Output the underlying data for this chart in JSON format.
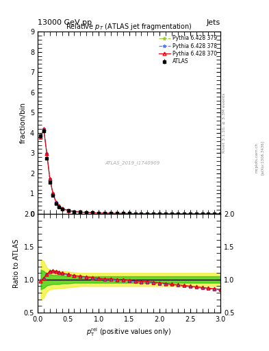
{
  "title_top": "13000 GeV pp",
  "title_right": "Jets",
  "main_title": "Relative $p_{T}$ (ATLAS jet fragmentation)",
  "ylabel_main": "fraction/bin",
  "ylabel_ratio": "Ratio to ATLAS",
  "right_label_main": "Rivet 3.1.10, ≥ 3.3M events",
  "right_label_arxiv": "[arXiv:1306.3436]",
  "right_label_mcplots": "mcplots.cern.ch",
  "watermark": "ATLAS_2019_I1740909",
  "xlim": [
    0,
    3
  ],
  "ylim_main": [
    0,
    9
  ],
  "ylim_ratio": [
    0.5,
    2.0
  ],
  "x_data": [
    0.05,
    0.1,
    0.15,
    0.2,
    0.25,
    0.3,
    0.35,
    0.4,
    0.5,
    0.6,
    0.7,
    0.8,
    0.9,
    1.0,
    1.1,
    1.2,
    1.3,
    1.4,
    1.5,
    1.6,
    1.7,
    1.8,
    1.9,
    2.0,
    2.1,
    2.2,
    2.3,
    2.4,
    2.5,
    2.6,
    2.7,
    2.8,
    2.9,
    3.0
  ],
  "atlas_y": [
    3.85,
    4.1,
    2.75,
    1.55,
    0.9,
    0.52,
    0.35,
    0.24,
    0.155,
    0.11,
    0.085,
    0.065,
    0.052,
    0.042,
    0.034,
    0.028,
    0.023,
    0.019,
    0.016,
    0.014,
    0.012,
    0.01,
    0.009,
    0.008,
    0.007,
    0.006,
    0.006,
    0.005,
    0.005,
    0.004,
    0.004,
    0.004,
    0.003,
    0.003
  ],
  "atlas_yerr": [
    0.12,
    0.1,
    0.07,
    0.05,
    0.03,
    0.02,
    0.014,
    0.01,
    0.006,
    0.004,
    0.003,
    0.0025,
    0.002,
    0.0015,
    0.0013,
    0.001,
    0.001,
    0.001,
    0.001,
    0.0008,
    0.0007,
    0.0006,
    0.0006,
    0.0005,
    0.0005,
    0.0004,
    0.0004,
    0.0004,
    0.0004,
    0.0003,
    0.0003,
    0.0003,
    0.0003,
    0.0003
  ],
  "py370_ratio": [
    0.98,
    1.02,
    1.08,
    1.12,
    1.13,
    1.12,
    1.11,
    1.1,
    1.08,
    1.06,
    1.05,
    1.04,
    1.03,
    1.02,
    1.01,
    1.01,
    1.0,
    1.0,
    0.99,
    0.98,
    0.97,
    0.97,
    0.96,
    0.95,
    0.94,
    0.93,
    0.92,
    0.91,
    0.9,
    0.89,
    0.88,
    0.87,
    0.86,
    0.85
  ],
  "py378_ratio": [
    0.99,
    1.02,
    1.08,
    1.12,
    1.13,
    1.12,
    1.1,
    1.09,
    1.07,
    1.06,
    1.05,
    1.03,
    1.02,
    1.01,
    1.0,
    1.0,
    0.99,
    0.98,
    0.98,
    0.97,
    0.96,
    0.96,
    0.95,
    0.94,
    0.93,
    0.92,
    0.91,
    0.9,
    0.89,
    0.88,
    0.87,
    0.86,
    0.85,
    0.84
  ],
  "py379_ratio": [
    0.99,
    1.02,
    1.08,
    1.12,
    1.13,
    1.12,
    1.1,
    1.09,
    1.07,
    1.06,
    1.05,
    1.03,
    1.02,
    1.01,
    1.0,
    1.0,
    0.99,
    0.98,
    0.98,
    0.97,
    0.96,
    0.96,
    0.95,
    0.94,
    0.93,
    0.92,
    0.91,
    0.9,
    0.89,
    0.88,
    0.87,
    0.86,
    0.85,
    0.84
  ],
  "color_py370": "#e8000b",
  "color_py378": "#4d79ff",
  "color_py379": "#9acd32",
  "color_atlas": "#000000",
  "color_band_green": "#00bb00",
  "color_band_yellow": "#eeee00",
  "band_green_alpha": 0.55,
  "band_yellow_alpha": 0.6,
  "yellow_hi_vals": [
    1.3,
    1.28,
    1.18,
    1.15,
    1.14,
    1.14,
    1.13,
    1.13,
    1.12,
    1.11,
    1.1,
    1.1,
    1.1,
    1.1,
    1.1,
    1.1,
    1.1,
    1.1,
    1.1,
    1.1,
    1.1,
    1.1,
    1.1,
    1.1,
    1.1,
    1.1,
    1.1,
    1.1,
    1.1,
    1.1,
    1.1,
    1.1,
    1.1,
    1.1
  ],
  "yellow_lo_vals": [
    0.7,
    0.72,
    0.82,
    0.85,
    0.86,
    0.86,
    0.87,
    0.87,
    0.88,
    0.89,
    0.9,
    0.9,
    0.9,
    0.9,
    0.9,
    0.9,
    0.9,
    0.9,
    0.9,
    0.9,
    0.9,
    0.9,
    0.9,
    0.9,
    0.9,
    0.9,
    0.9,
    0.9,
    0.9,
    0.9,
    0.9,
    0.9,
    0.9,
    0.9
  ],
  "green_hi_vals": [
    1.15,
    1.13,
    1.09,
    1.08,
    1.07,
    1.07,
    1.07,
    1.06,
    1.06,
    1.05,
    1.05,
    1.05,
    1.05,
    1.05,
    1.05,
    1.05,
    1.05,
    1.05,
    1.05,
    1.05,
    1.05,
    1.05,
    1.05,
    1.05,
    1.05,
    1.05,
    1.05,
    1.05,
    1.05,
    1.05,
    1.05,
    1.05,
    1.05,
    1.05
  ],
  "green_lo_vals": [
    0.85,
    0.87,
    0.91,
    0.92,
    0.93,
    0.93,
    0.93,
    0.94,
    0.94,
    0.95,
    0.95,
    0.95,
    0.95,
    0.95,
    0.95,
    0.95,
    0.95,
    0.95,
    0.95,
    0.95,
    0.95,
    0.95,
    0.95,
    0.95,
    0.95,
    0.95,
    0.95,
    0.95,
    0.95,
    0.95,
    0.95,
    0.95,
    0.95,
    0.95
  ]
}
